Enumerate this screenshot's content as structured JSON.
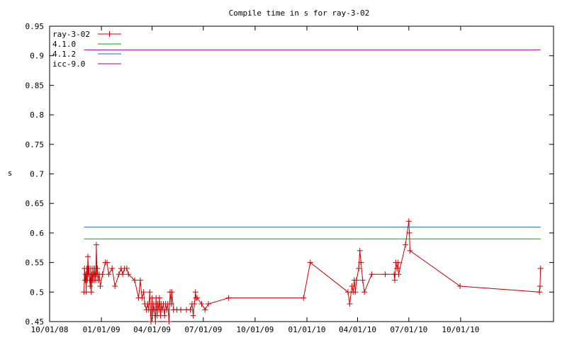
{
  "chart_data": {
    "type": "line",
    "title": "Compile time in s for ray-3-02",
    "xlabel": "",
    "ylabel": "s",
    "ylim": [
      0.45,
      0.95
    ],
    "xlim": [
      "2008-10-01",
      "2011-03-15"
    ],
    "y_ticks": [
      "0.45",
      "0.5",
      "0.55",
      "0.6",
      "0.65",
      "0.7",
      "0.75",
      "0.8",
      "0.85",
      "0.9",
      "0.95"
    ],
    "x_ticks": [
      {
        "date": "2008-10-01",
        "label": "10/01/08"
      },
      {
        "date": "2009-01-01",
        "label": "01/01/09"
      },
      {
        "date": "2009-04-01",
        "label": "04/01/09"
      },
      {
        "date": "2009-07-01",
        "label": "07/01/09"
      },
      {
        "date": "2009-10-01",
        "label": "10/01/09"
      },
      {
        "date": "2010-01-01",
        "label": "01/01/10"
      },
      {
        "date": "2010-04-01",
        "label": "04/01/10"
      },
      {
        "date": "2010-07-01",
        "label": "07/01/10"
      },
      {
        "date": "2010-10-01",
        "label": "10/01/10"
      }
    ],
    "legend_position": "top-left",
    "grid": false,
    "series": [
      {
        "name": "ray-3-02",
        "color": "#cc0000",
        "marker": "plus",
        "points": [
          [
            "2008-12-01",
            0.5
          ],
          [
            "2008-12-02",
            0.54
          ],
          [
            "2008-12-03",
            0.52
          ],
          [
            "2008-12-04",
            0.53
          ],
          [
            "2008-12-05",
            0.5
          ],
          [
            "2008-12-06",
            0.54
          ],
          [
            "2008-12-07",
            0.52
          ],
          [
            "2008-12-08",
            0.56
          ],
          [
            "2008-12-09",
            0.53
          ],
          [
            "2008-12-10",
            0.54
          ],
          [
            "2008-12-11",
            0.52
          ],
          [
            "2008-12-12",
            0.51
          ],
          [
            "2008-12-13",
            0.54
          ],
          [
            "2008-12-14",
            0.5
          ],
          [
            "2008-12-15",
            0.53
          ],
          [
            "2008-12-16",
            0.52
          ],
          [
            "2008-12-17",
            0.54
          ],
          [
            "2008-12-18",
            0.53
          ],
          [
            "2008-12-19",
            0.52
          ],
          [
            "2008-12-20",
            0.54
          ],
          [
            "2008-12-21",
            0.53
          ],
          [
            "2008-12-22",
            0.52
          ],
          [
            "2008-12-23",
            0.58
          ],
          [
            "2008-12-24",
            0.53
          ],
          [
            "2008-12-25",
            0.54
          ],
          [
            "2008-12-26",
            0.52
          ],
          [
            "2008-12-28",
            0.53
          ],
          [
            "2008-12-30",
            0.51
          ],
          [
            "2009-01-03",
            0.53
          ],
          [
            "2009-01-08",
            0.55
          ],
          [
            "2009-01-11",
            0.55
          ],
          [
            "2009-01-14",
            0.53
          ],
          [
            "2009-01-20",
            0.54
          ],
          [
            "2009-01-25",
            0.51
          ],
          [
            "2009-02-01",
            0.53
          ],
          [
            "2009-02-05",
            0.54
          ],
          [
            "2009-02-08",
            0.53
          ],
          [
            "2009-02-11",
            0.54
          ],
          [
            "2009-02-15",
            0.54
          ],
          [
            "2009-02-18",
            0.53
          ],
          [
            "2009-03-01",
            0.52
          ],
          [
            "2009-03-08",
            0.49
          ],
          [
            "2009-03-11",
            0.52
          ],
          [
            "2009-03-14",
            0.49
          ],
          [
            "2009-03-17",
            0.5
          ],
          [
            "2009-03-19",
            0.48
          ],
          [
            "2009-03-22",
            0.47
          ],
          [
            "2009-03-24",
            0.48
          ],
          [
            "2009-03-26",
            0.47
          ],
          [
            "2009-03-28",
            0.5
          ],
          [
            "2009-03-30",
            0.45
          ],
          [
            "2009-04-01",
            0.49
          ],
          [
            "2009-04-02",
            0.46
          ],
          [
            "2009-04-04",
            0.48
          ],
          [
            "2009-04-05",
            0.47
          ],
          [
            "2009-04-07",
            0.45
          ],
          [
            "2009-04-08",
            0.49
          ],
          [
            "2009-04-10",
            0.46
          ],
          [
            "2009-04-11",
            0.48
          ],
          [
            "2009-04-13",
            0.47
          ],
          [
            "2009-04-14",
            0.49
          ],
          [
            "2009-04-16",
            0.46
          ],
          [
            "2009-04-17",
            0.48
          ],
          [
            "2009-04-19",
            0.47
          ],
          [
            "2009-04-21",
            0.48
          ],
          [
            "2009-04-23",
            0.46
          ],
          [
            "2009-04-25",
            0.48
          ],
          [
            "2009-04-27",
            0.47
          ],
          [
            "2009-04-29",
            0.48
          ],
          [
            "2009-05-01",
            0.45
          ],
          [
            "2009-05-03",
            0.5
          ],
          [
            "2009-05-05",
            0.48
          ],
          [
            "2009-05-06",
            0.5
          ],
          [
            "2009-05-09",
            0.47
          ],
          [
            "2009-05-15",
            0.47
          ],
          [
            "2009-05-22",
            0.47
          ],
          [
            "2009-06-01",
            0.47
          ],
          [
            "2009-06-08",
            0.47
          ],
          [
            "2009-06-11",
            0.48
          ],
          [
            "2009-06-13",
            0.46
          ],
          [
            "2009-06-15",
            0.48
          ],
          [
            "2009-06-17",
            0.5
          ],
          [
            "2009-06-18",
            0.49
          ],
          [
            "2009-06-20",
            0.49
          ],
          [
            "2009-06-28",
            0.48
          ],
          [
            "2009-07-04",
            0.47
          ],
          [
            "2009-07-10",
            0.48
          ],
          [
            "2009-08-15",
            0.49
          ],
          [
            "2009-12-26",
            0.49
          ],
          [
            "2010-01-07",
            0.55
          ],
          [
            "2010-03-15",
            0.5
          ],
          [
            "2010-03-18",
            0.48
          ],
          [
            "2010-03-22",
            0.51
          ],
          [
            "2010-03-24",
            0.5
          ],
          [
            "2010-03-26",
            0.52
          ],
          [
            "2010-03-28",
            0.5
          ],
          [
            "2010-03-30",
            0.52
          ],
          [
            "2010-04-03",
            0.54
          ],
          [
            "2010-04-05",
            0.57
          ],
          [
            "2010-04-07",
            0.55
          ],
          [
            "2010-04-10",
            0.52
          ],
          [
            "2010-04-13",
            0.5
          ],
          [
            "2010-04-26",
            0.53
          ],
          [
            "2010-05-20",
            0.53
          ],
          [
            "2010-06-05",
            0.53
          ],
          [
            "2010-06-06",
            0.52
          ],
          [
            "2010-06-08",
            0.55
          ],
          [
            "2010-06-10",
            0.54
          ],
          [
            "2010-06-12",
            0.55
          ],
          [
            "2010-06-13",
            0.53
          ],
          [
            "2010-06-25",
            0.58
          ],
          [
            "2010-07-01",
            0.62
          ],
          [
            "2010-07-02",
            0.6
          ],
          [
            "2010-07-03",
            0.57
          ],
          [
            "2010-09-30",
            0.51
          ],
          [
            "2011-02-18",
            0.5
          ],
          [
            "2011-02-19",
            0.51
          ],
          [
            "2011-02-20",
            0.54
          ]
        ]
      },
      {
        "name": "4.1.0",
        "color": "#00aa00",
        "marker": "none",
        "points": [
          [
            "2008-12-01",
            0.59
          ],
          [
            "2011-02-20",
            0.59
          ]
        ]
      },
      {
        "name": "4.1.2",
        "color": "#2266cc",
        "marker": "none",
        "points": [
          [
            "2008-12-01",
            0.61
          ],
          [
            "2011-02-20",
            0.61
          ]
        ]
      },
      {
        "name": "icc-9.0",
        "color": "#aa00aa",
        "marker": "none",
        "points": [
          [
            "2008-12-01",
            0.91
          ],
          [
            "2011-02-20",
            0.91
          ]
        ]
      }
    ]
  }
}
